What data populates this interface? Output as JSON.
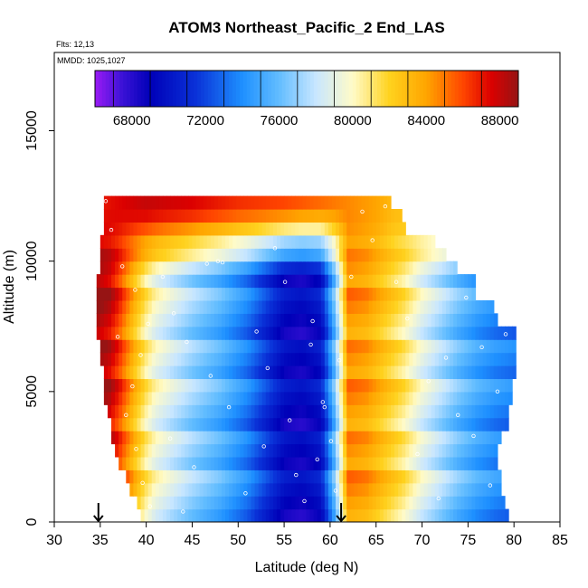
{
  "chart_data": {
    "type": "heatmap",
    "title": "ATOM3 Northeast_Pacific_2 End_LAS",
    "flights_note": "Flts: 12,13",
    "dates_note": "MMDD: 1025,1027",
    "xlabel": "Latitude (deg N)",
    "ylabel": "Altitude (m)",
    "xlim": [
      30,
      85
    ],
    "ylim": [
      0,
      18000
    ],
    "x_ticks": [
      30,
      35,
      40,
      45,
      50,
      55,
      60,
      65,
      70,
      75,
      80,
      85
    ],
    "y_ticks": [
      0,
      5000,
      10000,
      15000
    ],
    "colorbar": {
      "range": [
        66000,
        89000
      ],
      "ticks": [
        68000,
        72000,
        76000,
        80000,
        84000,
        88000
      ],
      "bin_width": 2000,
      "stops": [
        {
          "v": 66000,
          "c": "#9a1bf5"
        },
        {
          "v": 67500,
          "c": "#3a12d6"
        },
        {
          "v": 69000,
          "c": "#0000b8"
        },
        {
          "v": 71500,
          "c": "#0a32d8"
        },
        {
          "v": 74000,
          "c": "#1e90ff"
        },
        {
          "v": 76000,
          "c": "#62bdff"
        },
        {
          "v": 78000,
          "c": "#c8e6ff"
        },
        {
          "v": 80000,
          "c": "#fffbc8"
        },
        {
          "v": 82000,
          "c": "#ffd21e"
        },
        {
          "v": 84000,
          "c": "#ffa500"
        },
        {
          "v": 86000,
          "c": "#ff4500"
        },
        {
          "v": 87500,
          "c": "#dc0000"
        },
        {
          "v": 89000,
          "c": "#961414"
        }
      ]
    },
    "field_bins": {
      "lat_start": 34.6,
      "lat_end": 80.2,
      "lat_step": 0.4,
      "alt_start": 0,
      "alt_step": 500,
      "alt_bins": 25
    },
    "coverage": [
      {
        "alt": [
          0,
          500
        ],
        "lat": [
          39.2,
          79.6
        ]
      },
      {
        "alt": [
          500,
          1000
        ],
        "lat": [
          39.0,
          79.2
        ]
      },
      {
        "alt": [
          1000,
          1500
        ],
        "lat": [
          38.2,
          78.8
        ]
      },
      {
        "alt": [
          1500,
          2000
        ],
        "lat": [
          37.8,
          78.6
        ]
      },
      {
        "alt": [
          2000,
          2500
        ],
        "lat": [
          37.0,
          78.2
        ]
      },
      {
        "alt": [
          2500,
          3000
        ],
        "lat": [
          36.6,
          78.4
        ]
      },
      {
        "alt": [
          3000,
          3500
        ],
        "lat": [
          36.2,
          78.8
        ]
      },
      {
        "alt": [
          3500,
          4000
        ],
        "lat": [
          36.2,
          79.6
        ]
      },
      {
        "alt": [
          4000,
          4500
        ],
        "lat": [
          35.8,
          79.4
        ]
      },
      {
        "alt": [
          4500,
          5000
        ],
        "lat": [
          35.4,
          79.8
        ]
      },
      {
        "alt": [
          5000,
          5500
        ],
        "lat": [
          35.4,
          79.8
        ]
      },
      {
        "alt": [
          5500,
          6000
        ],
        "lat": [
          35.4,
          80.2
        ]
      },
      {
        "alt": [
          6000,
          6500
        ],
        "lat": [
          35.0,
          80.2
        ]
      },
      {
        "alt": [
          6500,
          7000
        ],
        "lat": [
          35.0,
          80.2
        ]
      },
      {
        "alt": [
          7000,
          7500
        ],
        "lat": [
          34.6,
          80.2
        ]
      },
      {
        "alt": [
          7500,
          8000
        ],
        "lat": [
          34.6,
          78.2
        ]
      },
      {
        "alt": [
          8000,
          8500
        ],
        "lat": [
          34.6,
          77.8
        ]
      },
      {
        "alt": [
          8500,
          9000
        ],
        "lat": [
          34.6,
          75.8
        ]
      },
      {
        "alt": [
          9000,
          9500
        ],
        "lat": [
          34.6,
          75.8
        ]
      },
      {
        "alt": [
          9500,
          10000
        ],
        "lat": [
          35.0,
          73.8
        ]
      },
      {
        "alt": [
          10000,
          10500
        ],
        "lat": [
          35.0,
          72.6
        ]
      },
      {
        "alt": [
          10500,
          11000
        ],
        "lat": [
          35.0,
          71.2
        ]
      },
      {
        "alt": [
          11000,
          11500
        ],
        "lat": [
          35.4,
          68.2
        ]
      },
      {
        "alt": [
          11500,
          12000
        ],
        "lat": [
          35.4,
          67.6
        ]
      },
      {
        "alt": [
          12000,
          12500
        ],
        "lat": [
          35.4,
          66.6
        ]
      }
    ],
    "value_profile": [
      {
        "lat": 34.6,
        "v": 89000
      },
      {
        "lat": 36.0,
        "v": 88000
      },
      {
        "lat": 37.0,
        "v": 86500
      },
      {
        "lat": 38.0,
        "v": 84500
      },
      {
        "lat": 39.0,
        "v": 82500
      },
      {
        "lat": 40.0,
        "v": 80800
      },
      {
        "lat": 41.0,
        "v": 79500
      },
      {
        "lat": 43.0,
        "v": 78200
      },
      {
        "lat": 45.0,
        "v": 77000
      },
      {
        "lat": 48.0,
        "v": 75500
      },
      {
        "lat": 51.0,
        "v": 73500
      },
      {
        "lat": 53.0,
        "v": 71500
      },
      {
        "lat": 55.0,
        "v": 69500
      },
      {
        "lat": 57.0,
        "v": 69000
      },
      {
        "lat": 59.0,
        "v": 70000
      },
      {
        "lat": 60.5,
        "v": 76000
      },
      {
        "lat": 62.0,
        "v": 84500
      },
      {
        "lat": 64.0,
        "v": 84000
      },
      {
        "lat": 66.0,
        "v": 82500
      },
      {
        "lat": 68.0,
        "v": 81000
      },
      {
        "lat": 70.0,
        "v": 79000
      },
      {
        "lat": 72.0,
        "v": 77500
      },
      {
        "lat": 74.0,
        "v": 76000
      },
      {
        "lat": 76.0,
        "v": 74800
      },
      {
        "lat": 78.0,
        "v": 74000
      },
      {
        "lat": 80.2,
        "v": 73500
      }
    ],
    "upper_profile": [
      {
        "lat": 35.0,
        "v": 87000
      },
      {
        "lat": 40.0,
        "v": 88000
      },
      {
        "lat": 45.0,
        "v": 87500
      },
      {
        "lat": 50.0,
        "v": 86500
      },
      {
        "lat": 55.0,
        "v": 86000
      },
      {
        "lat": 60.0,
        "v": 85000
      },
      {
        "lat": 65.0,
        "v": 84000
      },
      {
        "lat": 67.0,
        "v": 83000
      }
    ],
    "arrow_markers": [
      34.8,
      61.2
    ],
    "sample_points": [
      {
        "lat": 35.6,
        "alt": 12300
      },
      {
        "lat": 36.2,
        "alt": 11200
      },
      {
        "lat": 37.4,
        "alt": 9800
      },
      {
        "lat": 38.8,
        "alt": 8900
      },
      {
        "lat": 40.2,
        "alt": 7600
      },
      {
        "lat": 39.4,
        "alt": 6400
      },
      {
        "lat": 38.5,
        "alt": 5200
      },
      {
        "lat": 37.8,
        "alt": 4100
      },
      {
        "lat": 38.9,
        "alt": 2800
      },
      {
        "lat": 39.6,
        "alt": 1500
      },
      {
        "lat": 40.4,
        "alt": 600
      },
      {
        "lat": 41.8,
        "alt": 9400
      },
      {
        "lat": 43.0,
        "alt": 8000
      },
      {
        "lat": 44.4,
        "alt": 6900
      },
      {
        "lat": 42.6,
        "alt": 3200
      },
      {
        "lat": 45.2,
        "alt": 2100
      },
      {
        "lat": 46.6,
        "alt": 9900
      },
      {
        "lat": 47.8,
        "alt": 10000
      },
      {
        "lat": 48.3,
        "alt": 9950
      },
      {
        "lat": 49.0,
        "alt": 4400
      },
      {
        "lat": 50.8,
        "alt": 1100
      },
      {
        "lat": 52.0,
        "alt": 7300
      },
      {
        "lat": 53.2,
        "alt": 5900
      },
      {
        "lat": 54.0,
        "alt": 10500
      },
      {
        "lat": 55.6,
        "alt": 3900
      },
      {
        "lat": 56.3,
        "alt": 1800
      },
      {
        "lat": 57.2,
        "alt": 800
      },
      {
        "lat": 57.9,
        "alt": 6800
      },
      {
        "lat": 58.6,
        "alt": 2400
      },
      {
        "lat": 59.2,
        "alt": 4600
      },
      {
        "lat": 60.1,
        "alt": 3100
      },
      {
        "lat": 61.0,
        "alt": 6200
      },
      {
        "lat": 62.3,
        "alt": 9400
      },
      {
        "lat": 63.5,
        "alt": 11900
      },
      {
        "lat": 64.6,
        "alt": 10800
      },
      {
        "lat": 66.0,
        "alt": 12100
      },
      {
        "lat": 67.2,
        "alt": 9200
      },
      {
        "lat": 68.4,
        "alt": 7800
      },
      {
        "lat": 69.5,
        "alt": 2600
      },
      {
        "lat": 70.7,
        "alt": 5400
      },
      {
        "lat": 71.8,
        "alt": 900
      },
      {
        "lat": 72.6,
        "alt": 6300
      },
      {
        "lat": 73.9,
        "alt": 4100
      },
      {
        "lat": 74.8,
        "alt": 8600
      },
      {
        "lat": 75.6,
        "alt": 3300
      },
      {
        "lat": 76.5,
        "alt": 6700
      },
      {
        "lat": 77.4,
        "alt": 1400
      },
      {
        "lat": 78.2,
        "alt": 5000
      },
      {
        "lat": 79.1,
        "alt": 7200
      },
      {
        "lat": 58.1,
        "alt": 7700
      },
      {
        "lat": 59.4,
        "alt": 4400
      },
      {
        "lat": 60.6,
        "alt": 1200
      },
      {
        "lat": 55.1,
        "alt": 9200
      },
      {
        "lat": 44.0,
        "alt": 400
      },
      {
        "lat": 36.9,
        "alt": 7100
      },
      {
        "lat": 52.8,
        "alt": 2900
      },
      {
        "lat": 47.0,
        "alt": 5600
      }
    ]
  }
}
